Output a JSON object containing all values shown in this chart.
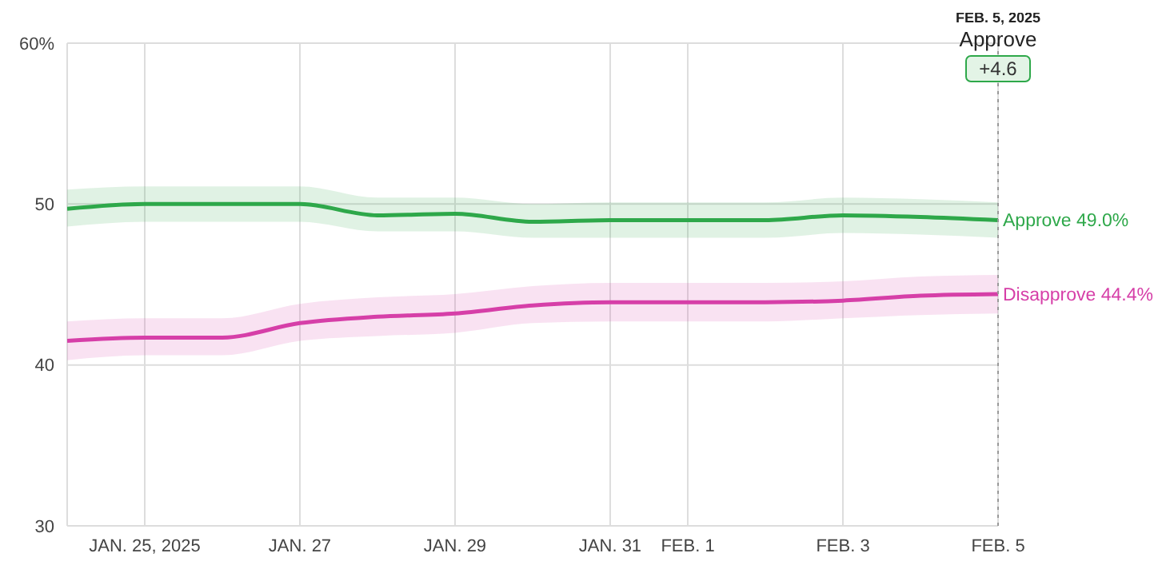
{
  "chart_data": {
    "type": "line",
    "x": [
      "2025-01-24",
      "2025-01-25",
      "2025-01-26",
      "2025-01-27",
      "2025-01-28",
      "2025-01-29",
      "2025-01-30",
      "2025-01-31",
      "2025-02-01",
      "2025-02-02",
      "2025-02-03",
      "2025-02-04",
      "2025-02-05"
    ],
    "series": [
      {
        "color": "#2ea84a",
        "values": [
          49.7,
          50.0,
          50.0,
          50.0,
          49.3,
          49.4,
          48.9,
          49.0,
          49.0,
          49.0,
          49.3,
          49.2,
          49.0
        ],
        "lower": [
          48.6,
          48.9,
          48.9,
          48.9,
          48.3,
          48.3,
          47.9,
          47.9,
          47.9,
          47.9,
          48.2,
          48.1,
          47.9
        ],
        "upper": [
          50.9,
          51.1,
          51.1,
          51.1,
          50.4,
          50.4,
          50.0,
          50.1,
          50.1,
          50.1,
          50.4,
          50.3,
          50.1
        ]
      },
      {
        "color": "#d63fa8",
        "values": [
          41.5,
          41.7,
          41.7,
          42.6,
          43.0,
          43.2,
          43.7,
          43.9,
          43.9,
          43.9,
          44.0,
          44.3,
          44.4
        ],
        "lower": [
          40.3,
          40.6,
          40.6,
          41.5,
          41.8,
          42.0,
          42.6,
          42.7,
          42.7,
          42.7,
          42.9,
          43.1,
          43.2
        ],
        "upper": [
          42.7,
          42.9,
          42.9,
          43.8,
          44.2,
          44.4,
          44.9,
          45.1,
          45.1,
          45.1,
          45.2,
          45.5,
          45.6
        ]
      }
    ],
    "xlim": [
      "2025-01-24",
      "2025-02-05"
    ],
    "xticks": [
      {
        "value": "2025-01-25",
        "label": "JAN. 25, 2025"
      },
      {
        "value": "2025-01-27",
        "label": "JAN. 27"
      },
      {
        "value": "2025-01-29",
        "label": "JAN. 29"
      },
      {
        "value": "2025-01-31",
        "label": "JAN. 31"
      },
      {
        "value": "2025-02-01",
        "label": "FEB. 1"
      },
      {
        "value": "2025-02-03",
        "label": "FEB. 3"
      },
      {
        "value": "2025-02-05",
        "label": "FEB. 5"
      }
    ],
    "ylim": [
      30,
      60
    ],
    "yticks": [
      30,
      40,
      50,
      {
        "value": 60,
        "label": "60%"
      }
    ],
    "grid": true,
    "marker": "none",
    "line_style": "solid",
    "ref_lines": [
      {
        "axis": "x",
        "value": "2025-02-05",
        "label": "FEB. 5, 2025",
        "color": "#999999",
        "line_style": "dotted"
      }
    ],
    "annotations": [
      "Approve",
      "+4.6",
      {
        "text": "Approve 49.0%",
        "x": "2025-02-05",
        "y": 49.0
      },
      {
        "text": "Disapprove 44.4%",
        "x": "2025-02-05",
        "y": 44.4
      }
    ]
  }
}
